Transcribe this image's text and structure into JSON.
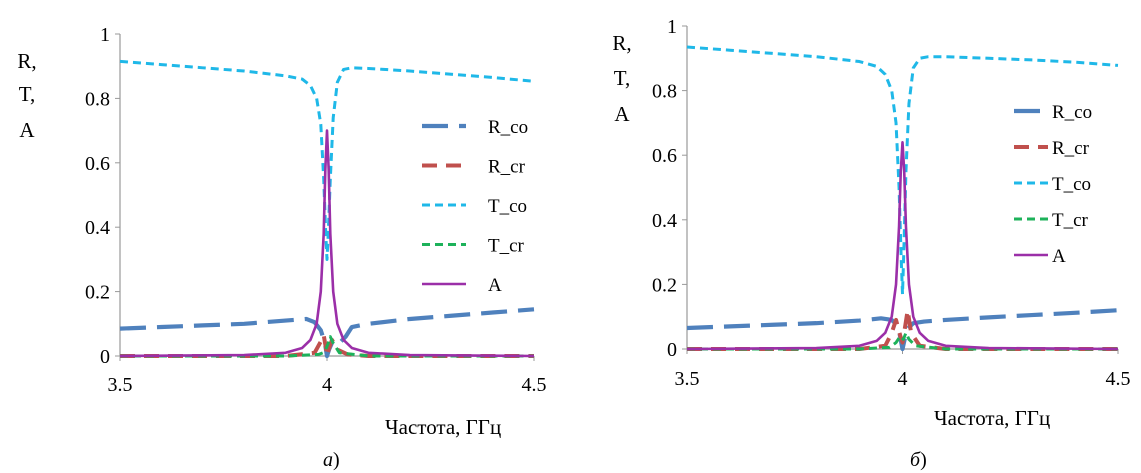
{
  "chart_data": [
    {
      "type": "line",
      "panel_label": "а",
      "title": "",
      "xlabel": "Частота, ГГц",
      "ylabel": [
        "R,",
        "T,",
        "A"
      ],
      "xlim": [
        3.5,
        4.5
      ],
      "ylim": [
        0,
        1
      ],
      "xticks": [
        "3.5",
        "4",
        "4.5"
      ],
      "yticks": [
        "0",
        "0.2",
        "0.4",
        "0.6",
        "0.8",
        "1"
      ],
      "grid": false,
      "legend_position": "right",
      "series": [
        {
          "name": "R_co",
          "color": "#4f81bd",
          "dash": "long-dash",
          "points": [
            [
              3.5,
              0.085
            ],
            [
              3.6,
              0.09
            ],
            [
              3.7,
              0.095
            ],
            [
              3.8,
              0.1
            ],
            [
              3.9,
              0.11
            ],
            [
              3.95,
              0.115
            ],
            [
              3.97,
              0.105
            ],
            [
              3.985,
              0.08
            ],
            [
              3.995,
              0.04
            ],
            [
              4.0,
              0.0
            ],
            [
              4.005,
              0.02
            ],
            [
              4.015,
              0.05
            ],
            [
              4.03,
              0.04
            ],
            [
              4.045,
              0.06
            ],
            [
              4.06,
              0.09
            ],
            [
              4.1,
              0.1
            ],
            [
              4.2,
              0.115
            ],
            [
              4.3,
              0.125
            ],
            [
              4.4,
              0.135
            ],
            [
              4.5,
              0.145
            ]
          ]
        },
        {
          "name": "R_cr",
          "color": "#c0504d",
          "dash": "dash",
          "points": [
            [
              3.5,
              0.0
            ],
            [
              3.9,
              0.0
            ],
            [
              3.97,
              0.01
            ],
            [
              3.985,
              0.045
            ],
            [
              3.992,
              0.065
            ],
            [
              3.998,
              0.02
            ],
            [
              4.0,
              0.0
            ],
            [
              4.004,
              0.02
            ],
            [
              4.012,
              0.05
            ],
            [
              4.025,
              0.02
            ],
            [
              4.05,
              0.005
            ],
            [
              4.1,
              0.0
            ],
            [
              4.5,
              0.0
            ]
          ]
        },
        {
          "name": "T_co",
          "color": "#1fb8e8",
          "dash": "short-dash",
          "points": [
            [
              3.5,
              0.915
            ],
            [
              3.6,
              0.905
            ],
            [
              3.7,
              0.895
            ],
            [
              3.8,
              0.885
            ],
            [
              3.9,
              0.87
            ],
            [
              3.94,
              0.86
            ],
            [
              3.96,
              0.84
            ],
            [
              3.975,
              0.8
            ],
            [
              3.985,
              0.72
            ],
            [
              3.992,
              0.55
            ],
            [
              3.997,
              0.38
            ],
            [
              4.0,
              0.3
            ],
            [
              4.003,
              0.38
            ],
            [
              4.008,
              0.55
            ],
            [
              4.015,
              0.74
            ],
            [
              4.025,
              0.85
            ],
            [
              4.04,
              0.89
            ],
            [
              4.06,
              0.895
            ],
            [
              4.1,
              0.893
            ],
            [
              4.2,
              0.885
            ],
            [
              4.3,
              0.875
            ],
            [
              4.4,
              0.865
            ],
            [
              4.5,
              0.853
            ]
          ]
        },
        {
          "name": "T_cr",
          "color": "#1db25a",
          "dash": "short-dash",
          "points": [
            [
              3.5,
              0.0
            ],
            [
              3.9,
              0.0
            ],
            [
              3.98,
              0.005
            ],
            [
              3.99,
              0.01
            ],
            [
              3.997,
              0.02
            ],
            [
              4.003,
              0.04
            ],
            [
              4.008,
              0.06
            ],
            [
              4.015,
              0.04
            ],
            [
              4.03,
              0.01
            ],
            [
              4.1,
              0.0
            ],
            [
              4.5,
              0.0
            ]
          ]
        },
        {
          "name": "A",
          "color": "#9b2fa8",
          "dash": "solid",
          "points": [
            [
              3.5,
              0.0
            ],
            [
              3.8,
              0.003
            ],
            [
              3.9,
              0.01
            ],
            [
              3.94,
              0.025
            ],
            [
              3.96,
              0.05
            ],
            [
              3.975,
              0.1
            ],
            [
              3.985,
              0.2
            ],
            [
              3.992,
              0.38
            ],
            [
              3.996,
              0.58
            ],
            [
              4.0,
              0.7
            ],
            [
              4.004,
              0.58
            ],
            [
              4.008,
              0.38
            ],
            [
              4.015,
              0.2
            ],
            [
              4.025,
              0.1
            ],
            [
              4.04,
              0.05
            ],
            [
              4.06,
              0.025
            ],
            [
              4.1,
              0.01
            ],
            [
              4.2,
              0.003
            ],
            [
              4.5,
              0.0
            ]
          ]
        }
      ]
    },
    {
      "type": "line",
      "panel_label": "б",
      "title": "",
      "xlabel": "Частота, ГГц",
      "ylabel": [
        "R,",
        "T,",
        "A"
      ],
      "xlim": [
        3.5,
        4.5
      ],
      "ylim": [
        0,
        1
      ],
      "xticks": [
        "3.5",
        "4",
        "4.5"
      ],
      "yticks": [
        "0",
        "0.2",
        "0.4",
        "0.6",
        "0.8",
        "1"
      ],
      "grid": false,
      "legend_position": "right",
      "series": [
        {
          "name": "R_co",
          "color": "#4f81bd",
          "dash": "long-dash",
          "points": [
            [
              3.5,
              0.065
            ],
            [
              3.6,
              0.07
            ],
            [
              3.7,
              0.075
            ],
            [
              3.8,
              0.08
            ],
            [
              3.9,
              0.088
            ],
            [
              3.95,
              0.095
            ],
            [
              3.975,
              0.09
            ],
            [
              3.99,
              0.07
            ],
            [
              4.0,
              0.0
            ],
            [
              4.01,
              0.06
            ],
            [
              4.025,
              0.08
            ],
            [
              4.05,
              0.085
            ],
            [
              4.1,
              0.09
            ],
            [
              4.2,
              0.098
            ],
            [
              4.3,
              0.105
            ],
            [
              4.4,
              0.112
            ],
            [
              4.5,
              0.12
            ]
          ]
        },
        {
          "name": "R_cr",
          "color": "#c0504d",
          "dash": "dash",
          "points": [
            [
              3.5,
              0.0
            ],
            [
              3.9,
              0.0
            ],
            [
              3.96,
              0.01
            ],
            [
              3.975,
              0.05
            ],
            [
              3.985,
              0.09
            ],
            [
              3.995,
              0.04
            ],
            [
              4.0,
              0.02
            ],
            [
              4.005,
              0.06
            ],
            [
              4.012,
              0.12
            ],
            [
              4.02,
              0.05
            ],
            [
              4.04,
              0.01
            ],
            [
              4.1,
              0.0
            ],
            [
              4.5,
              0.0
            ]
          ]
        },
        {
          "name": "T_co",
          "color": "#1fb8e8",
          "dash": "short-dash",
          "points": [
            [
              3.5,
              0.935
            ],
            [
              3.6,
              0.925
            ],
            [
              3.7,
              0.915
            ],
            [
              3.8,
              0.905
            ],
            [
              3.9,
              0.89
            ],
            [
              3.94,
              0.875
            ],
            [
              3.96,
              0.85
            ],
            [
              3.975,
              0.8
            ],
            [
              3.985,
              0.7
            ],
            [
              3.992,
              0.5
            ],
            [
              3.997,
              0.28
            ],
            [
              4.0,
              0.17
            ],
            [
              4.003,
              0.3
            ],
            [
              4.008,
              0.55
            ],
            [
              4.015,
              0.76
            ],
            [
              4.025,
              0.87
            ],
            [
              4.04,
              0.9
            ],
            [
              4.06,
              0.905
            ],
            [
              4.1,
              0.905
            ],
            [
              4.2,
              0.9
            ],
            [
              4.3,
              0.895
            ],
            [
              4.4,
              0.888
            ],
            [
              4.5,
              0.878
            ]
          ]
        },
        {
          "name": "T_cr",
          "color": "#1db25a",
          "dash": "short-dash",
          "points": [
            [
              3.5,
              0.0
            ],
            [
              3.9,
              0.0
            ],
            [
              3.97,
              0.005
            ],
            [
              3.985,
              0.02
            ],
            [
              3.995,
              0.04
            ],
            [
              4.002,
              0.03
            ],
            [
              4.008,
              0.05
            ],
            [
              4.015,
              0.03
            ],
            [
              4.03,
              0.01
            ],
            [
              4.1,
              0.0
            ],
            [
              4.5,
              0.0
            ]
          ]
        },
        {
          "name": "A",
          "color": "#9b2fa8",
          "dash": "solid",
          "points": [
            [
              3.5,
              0.0
            ],
            [
              3.8,
              0.003
            ],
            [
              3.9,
              0.01
            ],
            [
              3.94,
              0.025
            ],
            [
              3.96,
              0.05
            ],
            [
              3.975,
              0.1
            ],
            [
              3.985,
              0.2
            ],
            [
              3.992,
              0.38
            ],
            [
              3.996,
              0.55
            ],
            [
              4.0,
              0.64
            ],
            [
              4.004,
              0.55
            ],
            [
              4.008,
              0.38
            ],
            [
              4.015,
              0.2
            ],
            [
              4.025,
              0.1
            ],
            [
              4.04,
              0.05
            ],
            [
              4.06,
              0.025
            ],
            [
              4.1,
              0.01
            ],
            [
              4.2,
              0.003
            ],
            [
              4.5,
              0.0
            ]
          ]
        }
      ]
    }
  ]
}
